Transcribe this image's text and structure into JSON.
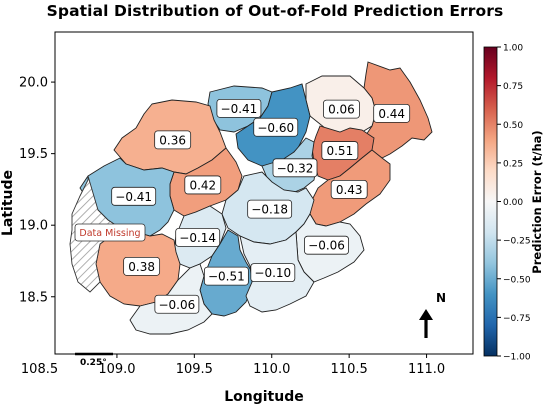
{
  "title": "Spatial Distribution of Out-of-Fold Prediction Errors",
  "map": {
    "x_axis": {
      "label": "Longitude",
      "range": [
        108.6,
        111.3
      ],
      "ticks": [
        "108.5",
        "109.0",
        "109.5",
        "110.0",
        "110.5",
        "111.0"
      ]
    },
    "y_axis": {
      "label": "Latitude",
      "range": [
        18.1,
        20.35
      ],
      "ticks": [
        "18.5",
        "19.0",
        "19.5",
        "20.0"
      ]
    },
    "colorbar": {
      "label": "Prediction Error (t/ha)",
      "range": [
        -1.0,
        1.0
      ],
      "colormap": "RdBu_r",
      "ticks": [
        "1.00",
        "0.75",
        "0.50",
        "0.25",
        "0.00",
        "−0.25",
        "−0.50",
        "−0.75",
        "−1.00"
      ]
    },
    "regions": [
      {
        "value": 0.44,
        "label": "0.44"
      },
      {
        "value": 0.06,
        "label": "0.06"
      },
      {
        "value": -0.41,
        "label": "−0.41"
      },
      {
        "value": -0.6,
        "label": "−0.60"
      },
      {
        "value": 0.36,
        "label": "0.36"
      },
      {
        "value": 0.51,
        "label": "0.51"
      },
      {
        "value": -0.32,
        "label": "−0.32"
      },
      {
        "value": 0.42,
        "label": "0.42"
      },
      {
        "value": -0.41,
        "label": "−0.41"
      },
      {
        "value": 0.43,
        "label": "0.43"
      },
      {
        "value": -0.18,
        "label": "−0.18"
      },
      {
        "value": -0.14,
        "label": "−0.14"
      },
      {
        "value": -0.06,
        "label": "−0.06"
      },
      {
        "value": 0.38,
        "label": "0.38"
      },
      {
        "value": -0.51,
        "label": "−0.51"
      },
      {
        "value": -0.1,
        "label": "−0.10"
      },
      {
        "value": -0.06,
        "label": "−0.06"
      }
    ],
    "missing": {
      "label": "Data Missing",
      "color": "#c0392b"
    },
    "north_arrow": "N",
    "scale_bar": "0.25°"
  }
}
